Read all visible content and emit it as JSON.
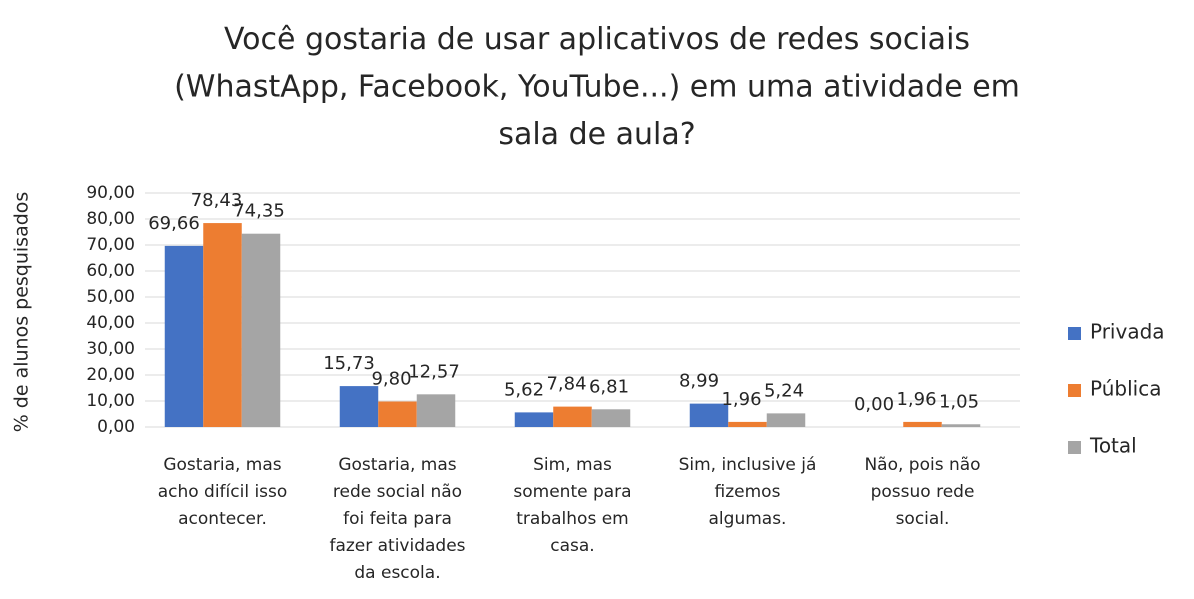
{
  "chart_data": {
    "type": "bar",
    "title": "Você gostaria de usar aplicativos de redes sociais\n(WhastApp, Facebook, YouTube...) em uma atividade em\nsala de aula?",
    "y_label": "% de alunos pesquisados",
    "categories": [
      "Gostaria, mas\nacho difícil isso\nacontecer.",
      "Gostaria, mas\nrede social não\nfoi feita para\nfazer atividades\nda escola.",
      "Sim, mas\nsomente para\ntrabalhos em\ncasa.",
      "Sim, inclusive já\nfizemos\nalgumas.",
      "Não, pois não\npossuo rede\nsocial."
    ],
    "series": [
      {
        "name": "Privada",
        "color": "#4472c4",
        "values": [
          69.66,
          15.73,
          5.62,
          8.99,
          0
        ],
        "value_labels": [
          "69,66",
          "15,73",
          "5,62",
          "8,99",
          "0,00"
        ]
      },
      {
        "name": "Pública",
        "color": "#ed7d31",
        "values": [
          78.43,
          9.8,
          7.84,
          1.96,
          1.96
        ],
        "value_labels": [
          "78,43",
          "9,80",
          "7,84",
          "1,96",
          "1,96"
        ]
      },
      {
        "name": "Total",
        "color": "#a5a5a5",
        "values": [
          74.35,
          12.57,
          6.81,
          5.24,
          1.05
        ],
        "value_labels": [
          "74,35",
          "12,57",
          "6,81",
          "5,24",
          "1,05"
        ]
      }
    ],
    "ylim": [
      0,
      90
    ],
    "yticks": [
      {
        "value": 0,
        "label": "0,00"
      },
      {
        "value": 10,
        "label": "10,00"
      },
      {
        "value": 20,
        "label": "20,00"
      },
      {
        "value": 30,
        "label": "30,00"
      },
      {
        "value": 40,
        "label": "40,00"
      },
      {
        "value": 50,
        "label": "50,00"
      },
      {
        "value": 60,
        "label": "60,00"
      },
      {
        "value": 70,
        "label": "70,00"
      },
      {
        "value": 80,
        "label": "80,00"
      },
      {
        "value": 90,
        "label": "90,00"
      }
    ],
    "grid": true,
    "legend": "right"
  }
}
